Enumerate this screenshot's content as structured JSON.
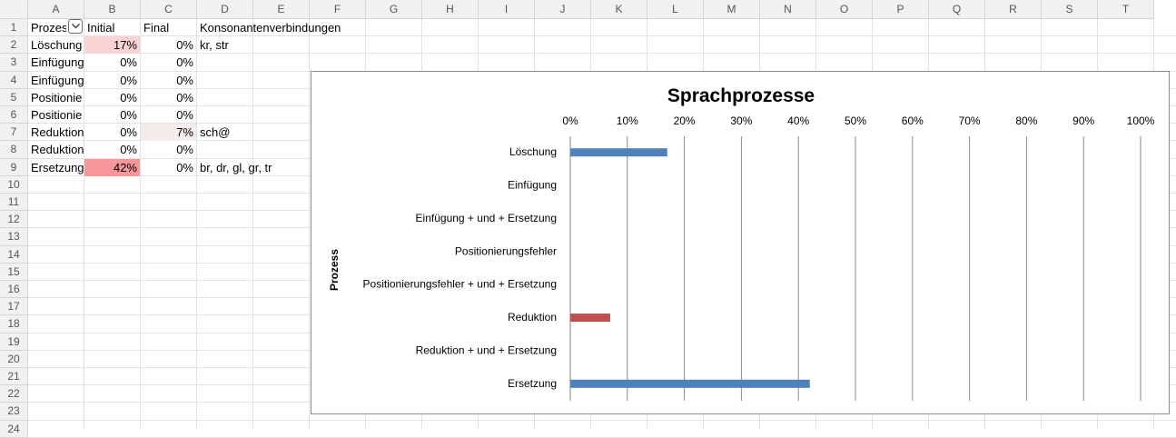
{
  "sheet": {
    "columns": [
      "A",
      "B",
      "C",
      "D",
      "E",
      "F",
      "G",
      "H",
      "I",
      "J",
      "K",
      "L",
      "M",
      "N",
      "O",
      "P",
      "Q",
      "R",
      "S",
      "T"
    ],
    "rows": [
      "1",
      "2",
      "3",
      "4",
      "5",
      "6",
      "7",
      "8",
      "9",
      "10",
      "11",
      "12",
      "13",
      "14",
      "15",
      "16",
      "17",
      "18",
      "19",
      "20",
      "21",
      "22",
      "23",
      "24"
    ],
    "header_row": {
      "a": "Prozes",
      "b": "Initial",
      "c": "Final",
      "d": "Konsonantenverbindungen"
    },
    "data_rows": [
      {
        "a": "Löschung",
        "b": "17%",
        "c": "0%",
        "d": "kr, str",
        "b_fill": "#fad3d4",
        "c_fill": ""
      },
      {
        "a": "Einfügung",
        "b": "0%",
        "c": "0%",
        "d": "",
        "b_fill": "",
        "c_fill": ""
      },
      {
        "a": "Einfügung",
        "b": "0%",
        "c": "0%",
        "d": "",
        "b_fill": "",
        "c_fill": ""
      },
      {
        "a": "Positionie",
        "b": "0%",
        "c": "0%",
        "d": "",
        "b_fill": "",
        "c_fill": ""
      },
      {
        "a": "Positionie",
        "b": "0%",
        "c": "0%",
        "d": "",
        "b_fill": "",
        "c_fill": ""
      },
      {
        "a": "Reduktion",
        "b": "0%",
        "c": "7%",
        "d": "sch@",
        "b_fill": "",
        "c_fill": "#f5ecec"
      },
      {
        "a": "Reduktion",
        "b": "0%",
        "c": "0%",
        "d": "",
        "b_fill": "",
        "c_fill": ""
      },
      {
        "a": "Ersetzung",
        "b": "42%",
        "c": "0%",
        "d": "br, dr, gl, gr, tr",
        "b_fill": "#f8979a",
        "c_fill": ""
      }
    ]
  },
  "chart_data": {
    "type": "bar",
    "orientation": "horizontal",
    "title": "Sprachprozesse",
    "ylabel": "Prozess",
    "xlabel": "",
    "x_ticks": [
      "0%",
      "10%",
      "20%",
      "30%",
      "40%",
      "50%",
      "60%",
      "70%",
      "80%",
      "90%",
      "100%"
    ],
    "xlim": [
      0,
      100
    ],
    "x_axis_position": "top",
    "grid": true,
    "categories": [
      "Löschung",
      "Einfügung",
      "Einfügung + und + Ersetzung",
      "Positionierungsfehler",
      "Positionierungsfehler + und + Ersetzung",
      "Reduktion",
      "Reduktion + und + Ersetzung",
      "Ersetzung"
    ],
    "values": [
      17,
      0,
      0,
      0,
      0,
      7,
      0,
      42
    ],
    "bar_colors": [
      "#4f81bd",
      "#4f81bd",
      "#4f81bd",
      "#4f81bd",
      "#4f81bd",
      "#c0504d",
      "#4f81bd",
      "#4f81bd"
    ]
  }
}
